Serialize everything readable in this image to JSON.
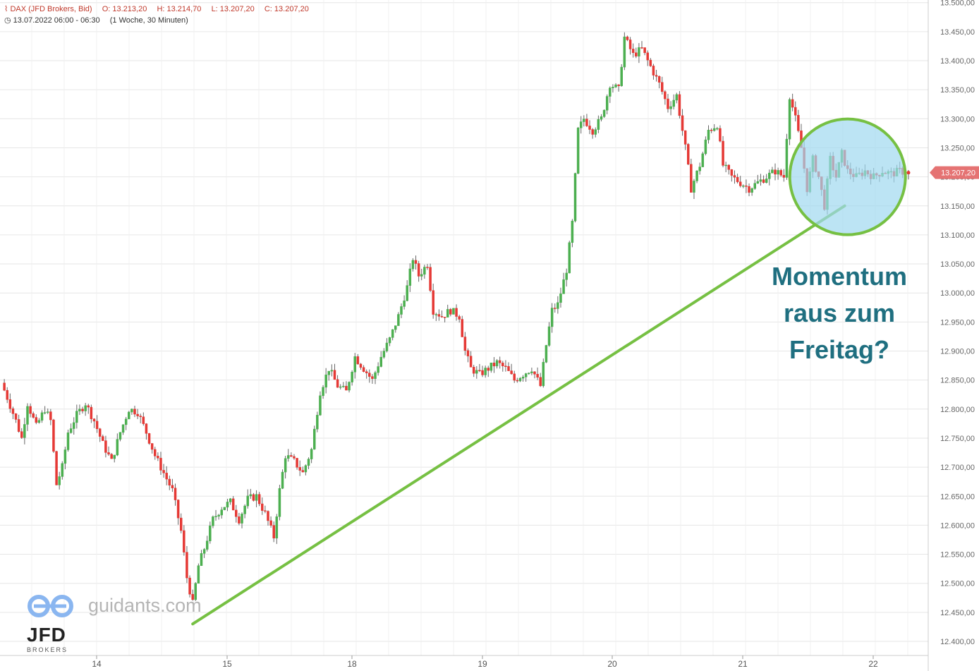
{
  "header": {
    "instrument": "DAX (JFD Brokers, Bid)",
    "ohlc": {
      "open": "O: 13.213,20",
      "high": "H: 13.214,70",
      "low": "L: 13.207,20",
      "close": "C: 13.207,20"
    },
    "period": "13.07.2022 06:00 - 06:30",
    "interval": "(1 Woche, 30 Minuten)"
  },
  "annotation": {
    "line1": "Momentum",
    "line2": "raus zum",
    "line3": "Freitag?"
  },
  "branding": {
    "site": "guidants.com",
    "logo": "JFD",
    "logo_sub": "BROKERS"
  },
  "colors": {
    "up": "#4caf50",
    "down": "#e53935",
    "trendline": "#76c043",
    "circle_fill": "#9fd8ef",
    "circle_stroke": "#76c043",
    "annotation": "#1f6f80",
    "price_tag": "#e57373"
  },
  "chart_data": {
    "type": "candlestick",
    "title": "",
    "x_tick_labels": [
      "14",
      "15",
      "18",
      "19",
      "20",
      "21",
      "22"
    ],
    "y_tick_labels": [
      "12.400,00",
      "12.450,00",
      "12.500,00",
      "12.550,00",
      "12.600,00",
      "12.650,00",
      "12.700,00",
      "12.750,00",
      "12.800,00",
      "12.850,00",
      "12.900,00",
      "12.950,00",
      "13.000,00",
      "13.050,00",
      "13.100,00",
      "13.150,00",
      "13.200,00",
      "13.250,00",
      "13.300,00",
      "13.350,00",
      "13.400,00",
      "13.450,00",
      "13.500,00"
    ],
    "ylim": [
      12390,
      13500
    ],
    "grid": true,
    "last_price": 13207.2,
    "last_price_label": "13.207,20",
    "close_path": [
      {
        "t": 0,
        "v": 12845
      },
      {
        "t": 2,
        "v": 12820
      },
      {
        "t": 5,
        "v": 12780
      },
      {
        "t": 7,
        "v": 12750
      },
      {
        "t": 9,
        "v": 12810
      },
      {
        "t": 12,
        "v": 12770
      },
      {
        "t": 15,
        "v": 12800
      },
      {
        "t": 17,
        "v": 12780
      },
      {
        "t": 19,
        "v": 12670
      },
      {
        "t": 21,
        "v": 12700
      },
      {
        "t": 23,
        "v": 12760
      },
      {
        "t": 26,
        "v": 12790
      },
      {
        "t": 29,
        "v": 12810
      },
      {
        "t": 32,
        "v": 12780
      },
      {
        "t": 35,
        "v": 12740
      },
      {
        "t": 38,
        "v": 12710
      },
      {
        "t": 41,
        "v": 12760
      },
      {
        "t": 44,
        "v": 12800
      },
      {
        "t": 47,
        "v": 12795
      },
      {
        "t": 50,
        "v": 12760
      },
      {
        "t": 53,
        "v": 12720
      },
      {
        "t": 56,
        "v": 12690
      },
      {
        "t": 59,
        "v": 12660
      },
      {
        "t": 62,
        "v": 12590
      },
      {
        "t": 64,
        "v": 12510
      },
      {
        "t": 66,
        "v": 12465
      },
      {
        "t": 68,
        "v": 12530
      },
      {
        "t": 70,
        "v": 12560
      },
      {
        "t": 73,
        "v": 12610
      },
      {
        "t": 76,
        "v": 12630
      },
      {
        "t": 79,
        "v": 12640
      },
      {
        "t": 82,
        "v": 12610
      },
      {
        "t": 85,
        "v": 12645
      },
      {
        "t": 88,
        "v": 12650
      },
      {
        "t": 91,
        "v": 12620
      },
      {
        "t": 94,
        "v": 12580
      },
      {
        "t": 96,
        "v": 12660
      },
      {
        "t": 98,
        "v": 12720
      },
      {
        "t": 101,
        "v": 12710
      },
      {
        "t": 104,
        "v": 12690
      },
      {
        "t": 107,
        "v": 12730
      },
      {
        "t": 110,
        "v": 12830
      },
      {
        "t": 113,
        "v": 12870
      },
      {
        "t": 116,
        "v": 12840
      },
      {
        "t": 119,
        "v": 12830
      },
      {
        "t": 122,
        "v": 12890
      },
      {
        "t": 125,
        "v": 12870
      },
      {
        "t": 128,
        "v": 12850
      },
      {
        "t": 131,
        "v": 12890
      },
      {
        "t": 134,
        "v": 12920
      },
      {
        "t": 137,
        "v": 12960
      },
      {
        "t": 140,
        "v": 13010
      },
      {
        "t": 142,
        "v": 13060
      },
      {
        "t": 144,
        "v": 13030
      },
      {
        "t": 147,
        "v": 13050
      },
      {
        "t": 149,
        "v": 12970
      },
      {
        "t": 152,
        "v": 12960
      },
      {
        "t": 155,
        "v": 12970
      },
      {
        "t": 158,
        "v": 12960
      },
      {
        "t": 160,
        "v": 12900
      },
      {
        "t": 162,
        "v": 12870
      },
      {
        "t": 165,
        "v": 12860
      },
      {
        "t": 168,
        "v": 12870
      },
      {
        "t": 171,
        "v": 12880
      },
      {
        "t": 174,
        "v": 12870
      },
      {
        "t": 177,
        "v": 12850
      },
      {
        "t": 180,
        "v": 12860
      },
      {
        "t": 183,
        "v": 12870
      },
      {
        "t": 186,
        "v": 12840
      },
      {
        "t": 188,
        "v": 12910
      },
      {
        "t": 190,
        "v": 12970
      },
      {
        "t": 192,
        "v": 12980
      },
      {
        "t": 195,
        "v": 13040
      },
      {
        "t": 197,
        "v": 13120
      },
      {
        "t": 199,
        "v": 13280
      },
      {
        "t": 201,
        "v": 13300
      },
      {
        "t": 204,
        "v": 13280
      },
      {
        "t": 207,
        "v": 13300
      },
      {
        "t": 210,
        "v": 13360
      },
      {
        "t": 213,
        "v": 13350
      },
      {
        "t": 215,
        "v": 13440
      },
      {
        "t": 218,
        "v": 13410
      },
      {
        "t": 221,
        "v": 13420
      },
      {
        "t": 224,
        "v": 13390
      },
      {
        "t": 227,
        "v": 13360
      },
      {
        "t": 230,
        "v": 13320
      },
      {
        "t": 233,
        "v": 13340
      },
      {
        "t": 236,
        "v": 13250
      },
      {
        "t": 238,
        "v": 13180
      },
      {
        "t": 241,
        "v": 13220
      },
      {
        "t": 244,
        "v": 13280
      },
      {
        "t": 247,
        "v": 13290
      },
      {
        "t": 249,
        "v": 13220
      },
      {
        "t": 252,
        "v": 13200
      },
      {
        "t": 255,
        "v": 13190
      },
      {
        "t": 258,
        "v": 13180
      },
      {
        "t": 261,
        "v": 13190
      },
      {
        "t": 264,
        "v": 13200
      },
      {
        "t": 267,
        "v": 13210
      },
      {
        "t": 270,
        "v": 13200
      },
      {
        "t": 272,
        "v": 13340
      },
      {
        "t": 274,
        "v": 13300
      },
      {
        "t": 276,
        "v": 13250
      },
      {
        "t": 278,
        "v": 13180
      },
      {
        "t": 280,
        "v": 13230
      },
      {
        "t": 282,
        "v": 13200
      },
      {
        "t": 284,
        "v": 13150
      },
      {
        "t": 286,
        "v": 13230
      },
      {
        "t": 288,
        "v": 13200
      },
      {
        "t": 290,
        "v": 13240
      },
      {
        "t": 292,
        "v": 13210
      },
      {
        "t": 295,
        "v": 13200
      },
      {
        "t": 298,
        "v": 13210
      },
      {
        "t": 301,
        "v": 13200
      },
      {
        "t": 304,
        "v": 13210
      },
      {
        "t": 307,
        "v": 13205
      },
      {
        "t": 310,
        "v": 13210
      },
      {
        "t": 313,
        "v": 13207
      }
    ],
    "trendline": {
      "from": {
        "t": 66,
        "v": 12430
      },
      "to": {
        "t": 291,
        "v": 13150
      }
    },
    "highlight_circle": {
      "t": 292,
      "v": 13200
    }
  }
}
